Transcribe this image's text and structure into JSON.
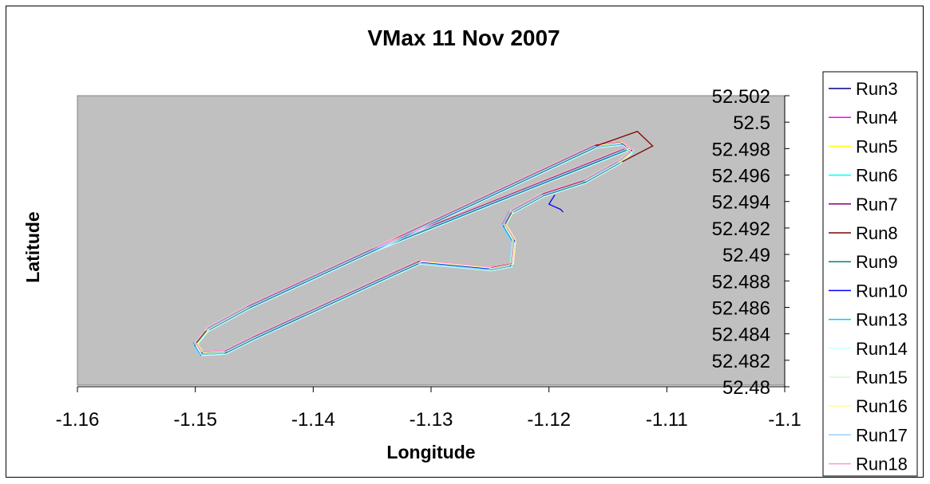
{
  "chart_data": {
    "type": "scatter",
    "title": "VMax 11 Nov 2007",
    "xlabel": "Longitude",
    "ylabel": "Latitude",
    "xlim": [
      -1.16,
      -1.1
    ],
    "ylim": [
      52.48,
      52.502
    ],
    "x_ticks": [
      "-1.16",
      "-1.15",
      "-1.14",
      "-1.13",
      "-1.12",
      "-1.11",
      "-1.1"
    ],
    "y_ticks": [
      "52.502",
      "52.5",
      "52.498",
      "52.496",
      "52.494",
      "52.492",
      "52.49",
      "52.488",
      "52.486",
      "52.484",
      "52.482",
      "52.48"
    ],
    "grid": false,
    "legend_position": "right",
    "track": [
      [
        -1.1133,
        52.498
      ],
      [
        -1.135,
        52.4903
      ],
      [
        -1.1455,
        52.486
      ],
      [
        -1.149,
        52.4843
      ],
      [
        -1.15,
        52.4832
      ],
      [
        -1.1495,
        52.4825
      ],
      [
        -1.1475,
        52.4826
      ],
      [
        -1.145,
        52.4837
      ],
      [
        -1.133,
        52.4886
      ],
      [
        -1.131,
        52.4894
      ],
      [
        -1.125,
        52.4889
      ],
      [
        -1.1232,
        52.4892
      ],
      [
        -1.123,
        52.491
      ],
      [
        -1.1238,
        52.4922
      ],
      [
        -1.1232,
        52.4932
      ],
      [
        -1.1205,
        52.4945
      ],
      [
        -1.117,
        52.4955
      ],
      [
        -1.114,
        52.497
      ],
      [
        -1.113,
        52.4978
      ],
      [
        -1.1138,
        52.4984
      ],
      [
        -1.116,
        52.4982
      ],
      [
        -1.135,
        52.4903
      ]
    ],
    "series": [
      {
        "name": "Run3",
        "color": "#000080",
        "offset": [
          0.0,
          0.0
        ]
      },
      {
        "name": "Run4",
        "color": "#ff00ff",
        "offset": [
          0.0001,
          8e-05
        ]
      },
      {
        "name": "Run5",
        "color": "#ffff00",
        "offset": [
          -8e-05,
          -6e-05
        ]
      },
      {
        "name": "Run6",
        "color": "#00ffff",
        "offset": [
          0.00012,
          -0.0001
        ]
      },
      {
        "name": "Run7",
        "color": "#800080",
        "offset": [
          -0.00012,
          0.0001
        ]
      },
      {
        "name": "Run8",
        "color": "#800000",
        "offset": [
          5e-05,
          0.00012
        ]
      },
      {
        "name": "Run9",
        "color": "#008080",
        "offset": [
          -5e-05,
          -0.00012
        ]
      },
      {
        "name": "Run10",
        "color": "#0000ff",
        "offset": [
          0.00015,
          3e-05
        ]
      },
      {
        "name": "Run13",
        "color": "#00ccff",
        "offset": [
          -0.00015,
          -3e-05
        ]
      },
      {
        "name": "Run14",
        "color": "#ccffff",
        "offset": [
          7e-05,
          -0.00014
        ]
      },
      {
        "name": "Run15",
        "color": "#ccffcc",
        "offset": [
          -7e-05,
          0.00014
        ]
      },
      {
        "name": "Run16",
        "color": "#ffff99",
        "offset": [
          0.00018,
          6e-05
        ]
      },
      {
        "name": "Run17",
        "color": "#99ccff",
        "offset": [
          -0.00018,
          -6e-05
        ]
      },
      {
        "name": "Run18",
        "color": "#ff99cc",
        "offset": [
          3e-05,
          0.00016
        ]
      }
    ],
    "run8_extension": [
      [
        -1.116,
        52.4982
      ],
      [
        -1.1125,
        52.4993
      ],
      [
        -1.1112,
        52.4982
      ],
      [
        -1.1138,
        52.497
      ]
    ],
    "run10_tail": [
      [
        -1.1195,
        52.4945
      ],
      [
        -1.12,
        52.4938
      ],
      [
        -1.119,
        52.4934
      ],
      [
        -1.1188,
        52.4932
      ]
    ]
  }
}
